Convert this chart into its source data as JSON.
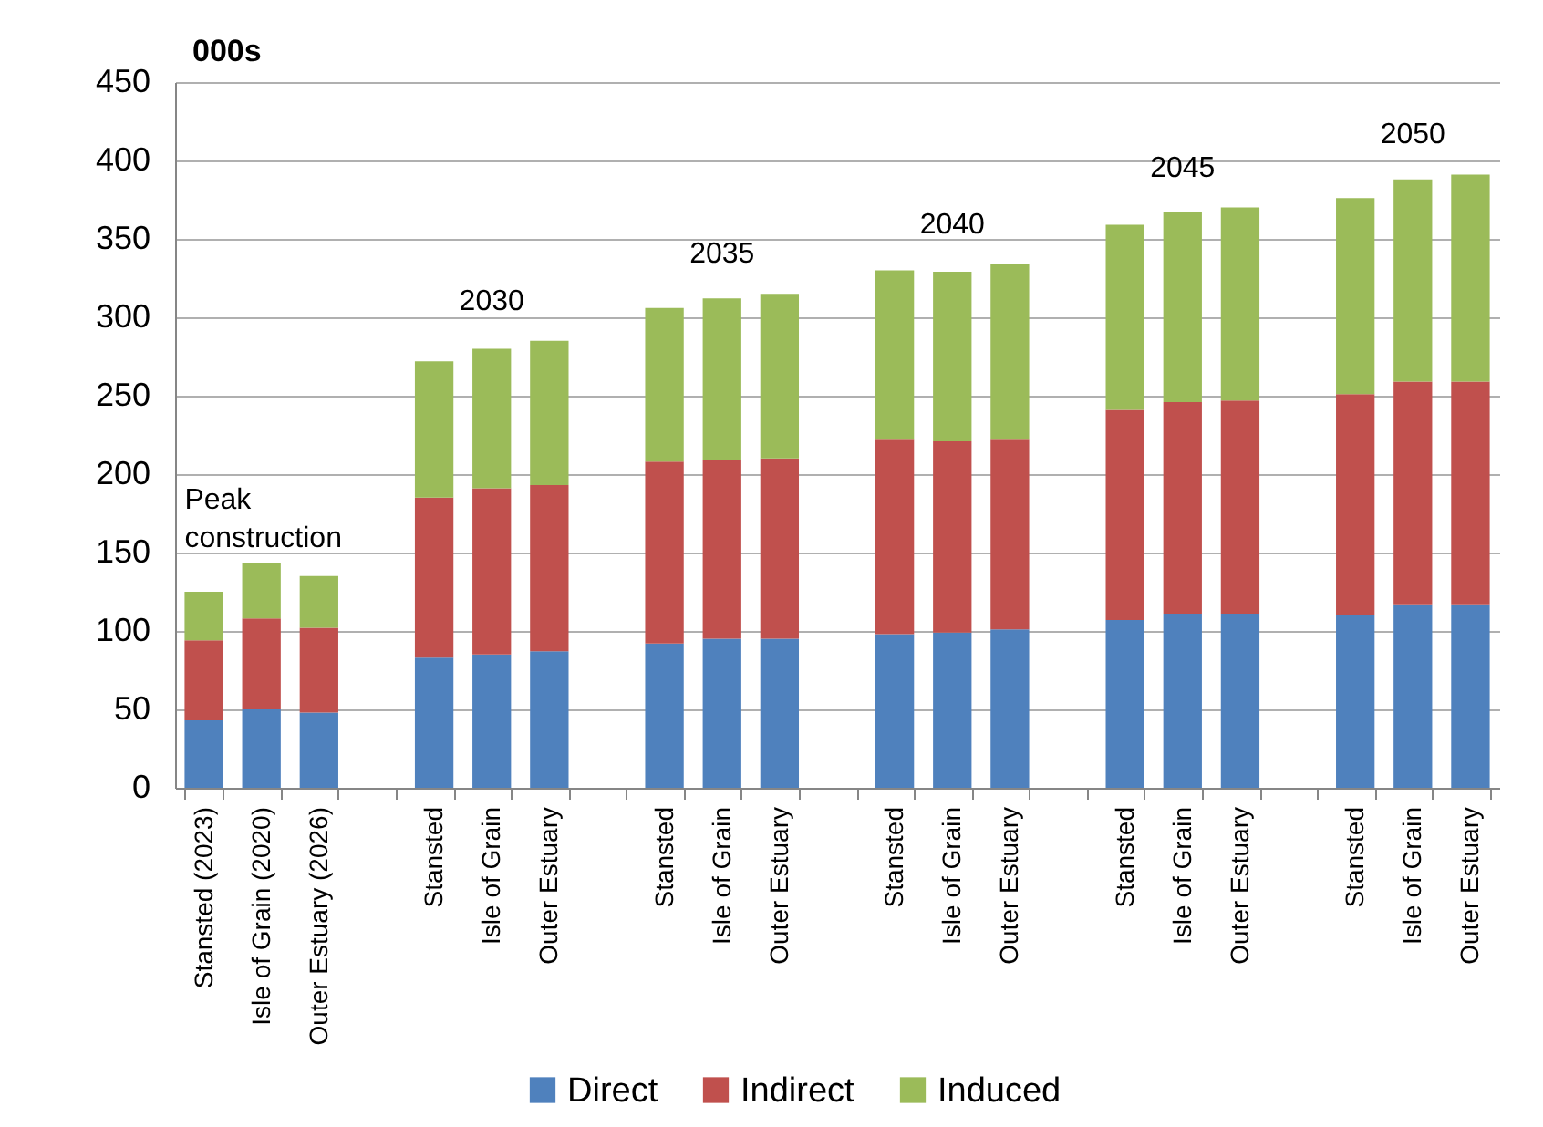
{
  "chart_data": {
    "type": "bar",
    "stacked": true,
    "ylabel": "000s",
    "categories": [
      "Stansted (2023)",
      "Isle of Grain (2020)",
      "Outer Estuary (2026)",
      null,
      "Stansted",
      "Isle of Grain",
      "Outer Estuary",
      null,
      "Stansted",
      "Isle of Grain",
      "Outer Estuary",
      null,
      "Stansted",
      "Isle of Grain",
      "Outer Estuary",
      null,
      "Stansted",
      "Isle of Grain",
      "Outer Estuary",
      null,
      "Stansted",
      "Isle of Grain",
      "Outer Estuary"
    ],
    "series": [
      {
        "name": "Direct",
        "color": "#4f81bd",
        "values": [
          43,
          50,
          48,
          null,
          83,
          85,
          87,
          null,
          92,
          95,
          95,
          null,
          98,
          99,
          101,
          null,
          107,
          111,
          111,
          null,
          110,
          117,
          117
        ]
      },
      {
        "name": "Indirect",
        "color": "#c0504d",
        "values": [
          51,
          58,
          54,
          null,
          102,
          106,
          106,
          null,
          116,
          114,
          115,
          null,
          124,
          122,
          121,
          null,
          134,
          135,
          136,
          null,
          141,
          142,
          142
        ]
      },
      {
        "name": "Induced",
        "color": "#9bbb59",
        "values": [
          31,
          35,
          33,
          null,
          87,
          89,
          92,
          null,
          98,
          103,
          105,
          null,
          108,
          108,
          112,
          null,
          118,
          121,
          123,
          null,
          125,
          129,
          132
        ]
      }
    ],
    "ylim": [
      0,
      450
    ],
    "yticks": [
      0,
      50,
      100,
      150,
      200,
      250,
      300,
      350,
      400,
      450
    ],
    "grid": "y",
    "legend": "bottom",
    "annotations": [
      "Peak construction",
      "2030",
      "2035",
      "2040",
      "2045",
      "2050"
    ]
  }
}
